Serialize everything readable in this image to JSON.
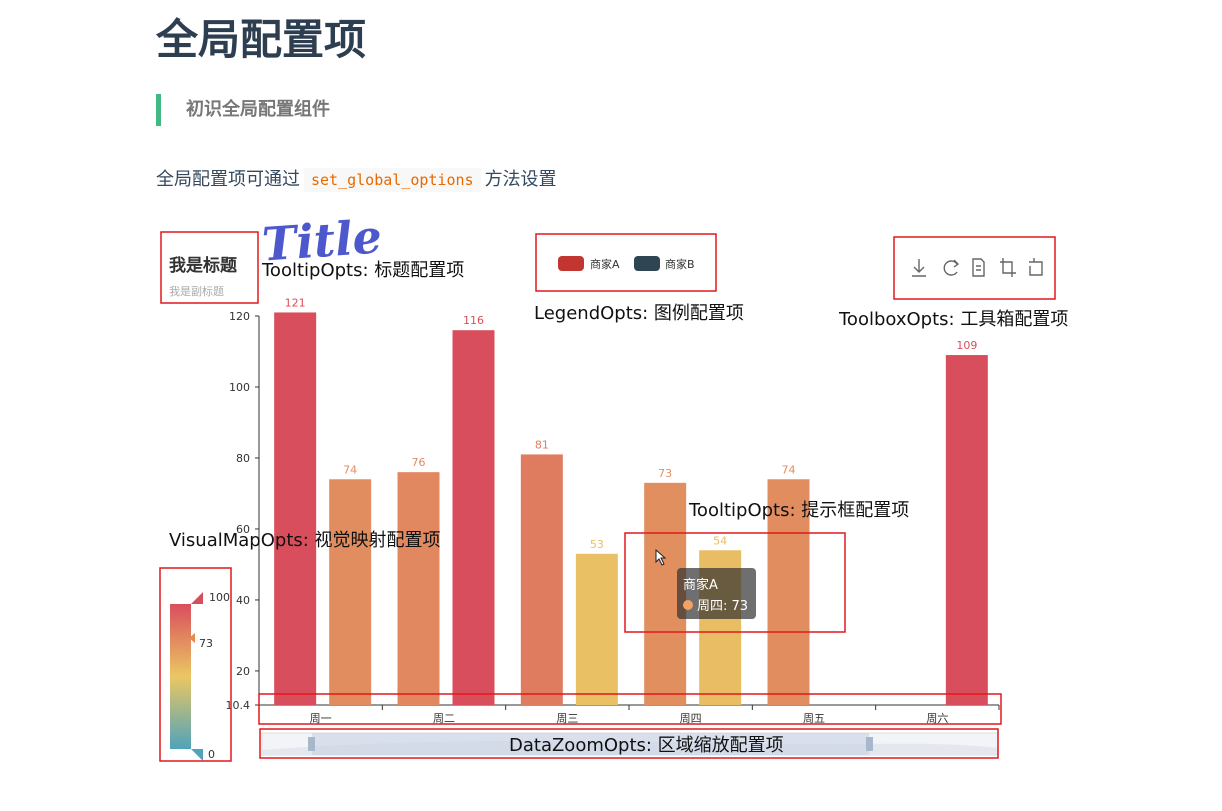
{
  "page": {
    "title": "全局配置项",
    "section": "初识全局配置组件",
    "intro_before": "全局配置项可通过",
    "intro_code": "set_global_options",
    "intro_after": "方法设置"
  },
  "chart_data": {
    "type": "bar",
    "title": "我是标题",
    "subtitle": "我是副标题",
    "categories": [
      "周一",
      "周二",
      "周三",
      "周四",
      "周五",
      "周六"
    ],
    "series": [
      {
        "name": "商家A",
        "values": [
          121,
          76,
          81,
          73,
          74,
          null
        ]
      },
      {
        "name": "商家B",
        "values": [
          74,
          116,
          53,
          54,
          null,
          109
        ]
      }
    ],
    "yticks": [
      120,
      100,
      80,
      60,
      40,
      20,
      10.4
    ],
    "ylim": [
      10.4,
      125
    ],
    "legend": {
      "position": "top-center",
      "colors": [
        "#c23531",
        "#2f4554"
      ]
    },
    "visualmap": {
      "min": 0,
      "max": 100,
      "min_label": "0",
      "max_label": "100",
      "indicator": 73,
      "indicator_label": "73"
    },
    "tooltip": {
      "series": "商家A",
      "label": "周四: 73"
    },
    "toolbox_icons": [
      "download-icon",
      "refresh-icon",
      "data-view-icon",
      "crop-icon",
      "restore-icon"
    ]
  },
  "annotations": {
    "title_logo": "Title",
    "title_opts": "TooltipOpts: 标题配置项",
    "legend_opts": "LegendOpts: 图例配置项",
    "toolbox_opts": "ToolboxOpts: 工具箱配置项",
    "tooltip_opts": "TooltipOpts: 提示框配置项",
    "visualmap_opts": "VisualMapOpts: 视觉映射配置项",
    "datazoom_opts": "DataZoomOpts: 区域缩放配置项"
  }
}
